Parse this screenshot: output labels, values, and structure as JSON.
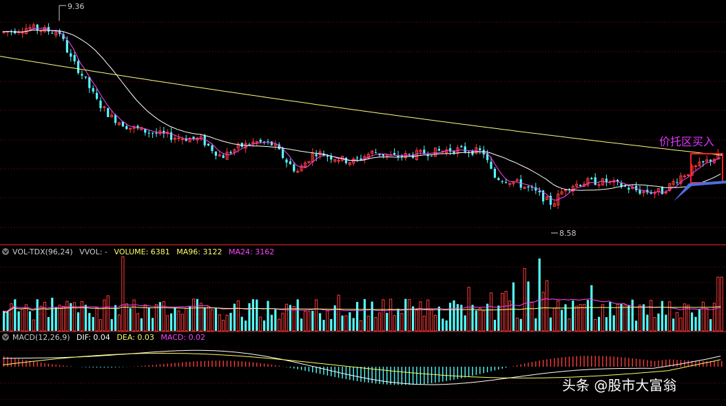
{
  "colors": {
    "up": "#ff3b3b",
    "down": "#54ffff",
    "ma_fast": "#ff44ff",
    "ma_mid": "#ffffff",
    "ma_slow": "#ffff80",
    "grid": "#8a1010",
    "divider": "#b01a1a",
    "annotation": "#dd33ff",
    "box": "#ff2020",
    "arrow": "#4a70e0"
  },
  "chart_data": [
    {
      "type": "candlestick",
      "panel": "price",
      "ylim": [
        8.45,
        9.42
      ],
      "annotations": {
        "high_label": "9.36",
        "low_label": "8.58",
        "buy_zone_label": "价托区买入"
      },
      "series_style": {
        "candles": "up red / down cyan",
        "moving_averages": 3
      },
      "note_candle_count": 0
    },
    {
      "type": "bar",
      "panel": "volume",
      "header": {
        "name": "VOL-TDX(96,24)",
        "vvol": "VVOL: -",
        "volume": "VOLUME: 6381",
        "ma96": "MA96: 3122",
        "ma24": "MA24: 3162"
      },
      "last_values": {
        "volume": 6381,
        "ma96": 3122,
        "ma24": 3162
      }
    },
    {
      "type": "bar",
      "panel": "macd",
      "header": {
        "name": "MACD(12,26,9)",
        "dif": "DIF: 0.04",
        "dea": "DEA: 0.03",
        "macd": "MACD: 0.02"
      },
      "last_values": {
        "dif": 0.04,
        "dea": 0.03,
        "macd": 0.02
      }
    }
  ],
  "watermark": "头条 @股市大富翁"
}
